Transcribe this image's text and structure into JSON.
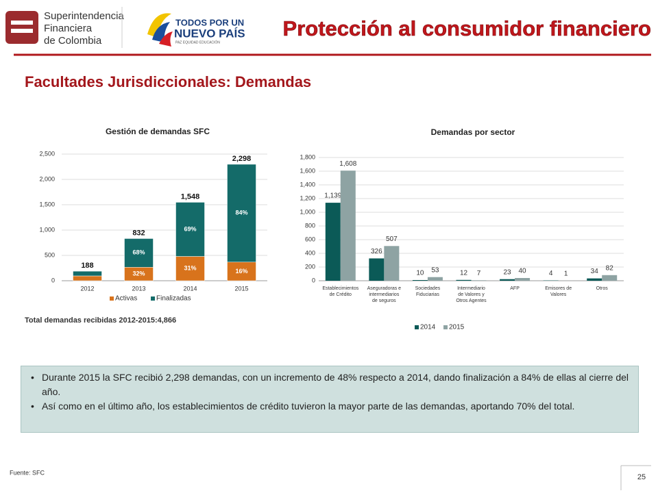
{
  "header": {
    "logo1": [
      "Superintendencia",
      "Financiera",
      "de Colombia"
    ],
    "logo2": [
      "TODOS POR UN",
      "NUEVO PAÍS",
      "PAZ  EQUIDAD  EDUCACIÓN"
    ],
    "title": "Protección al consumidor financiero"
  },
  "subtitle": "Facultades Jurisdiccionales: Demandas",
  "chart_data": [
    {
      "type": "stacked_bar",
      "title": "Gestión de demandas SFC",
      "categories": [
        "2012",
        "2013",
        "2014",
        "2015"
      ],
      "series": [
        {
          "name": "Activas",
          "color": "#d8731c",
          "values": [
            95,
            266,
            480,
            368
          ],
          "share_labels": [
            null,
            "32%",
            "31%",
            "16%"
          ]
        },
        {
          "name": "Finalizadas",
          "color": "#146b69",
          "values": [
            93,
            566,
            1068,
            1930
          ],
          "share_labels": [
            null,
            "68%",
            "69%",
            "84%"
          ]
        }
      ],
      "totals": [
        188,
        832,
        1548,
        2298
      ],
      "total_labels": [
        "188",
        "832",
        "1,548",
        "2,298"
      ],
      "ylim": [
        0,
        2500
      ],
      "yticks": [
        0,
        500,
        {
          "value": 1000,
          "label": "1,000"
        },
        {
          "value": 1500,
          "label": "1,500"
        },
        {
          "value": 2000,
          "label": "2,000"
        },
        {
          "value": 2500,
          "label": "2,500"
        }
      ],
      "grid": true,
      "note": "Total demandas recibidas 2012-2015:4,866"
    },
    {
      "type": "grouped_bar",
      "title": "Demandas por sector",
      "categories": [
        "Establecimientos de Crédito",
        "Aseguradoras e intermediarios de seguros",
        "Sociedades Fiduciarias",
        "Intermediario de Valores y Otros Agentes",
        "AFP",
        "Emisores de Valores",
        "Otros"
      ],
      "series": [
        {
          "name": "2014",
          "color": "#0b5a57",
          "values": [
            1139,
            326,
            10,
            12,
            23,
            4,
            34
          ],
          "value_labels": [
            "1,139",
            "326",
            "10",
            "12",
            "23",
            "4",
            "34"
          ]
        },
        {
          "name": "2015",
          "color": "#8ea3a3",
          "values": [
            1608,
            507,
            53,
            7,
            40,
            1,
            82
          ],
          "value_labels": [
            "1,608",
            "507",
            "53",
            "7",
            "40",
            "1",
            "82"
          ]
        }
      ],
      "ylim": [
        0,
        1800
      ],
      "yticks": [
        0,
        200,
        400,
        600,
        800,
        {
          "value": 1000,
          "label": "1,000"
        },
        {
          "value": 1200,
          "label": "1,200"
        },
        {
          "value": 1400,
          "label": "1,400"
        },
        {
          "value": 1600,
          "label": "1,600"
        },
        {
          "value": 1800,
          "label": "1,800"
        }
      ],
      "grid": true
    }
  ],
  "bullets": [
    "Durante 2015 la SFC recibió 2,298 demandas, con un incremento de 48% respecto a 2014, dando finalización a 84% de ellas al cierre del año.",
    "Así como en el último año, los establecimientos de crédito tuvieron la mayor parte de las demandas, aportando 70% del total."
  ],
  "footer": {
    "source": "Fuente: SFC",
    "page": "25"
  }
}
